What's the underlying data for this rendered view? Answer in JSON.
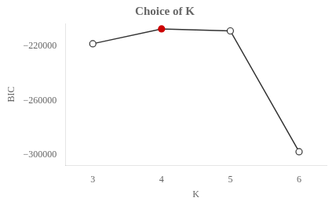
{
  "chart_data": {
    "type": "line",
    "title": "Choice of K",
    "xlabel": "K",
    "ylabel": "BIC",
    "x": [
      3,
      4,
      5,
      6
    ],
    "values": [
      -218000,
      -207000,
      -208500,
      -298000
    ],
    "color": "#333333",
    "colors": [
      "#333333",
      "#cc0000",
      "#333333",
      "#333333"
    ],
    "marker": "circle",
    "xlim": [
      2.6,
      6.4
    ],
    "ylim": [
      -308000,
      -203000
    ],
    "xticks": [
      3,
      4,
      5,
      6
    ],
    "yticks": [
      {
        "value": -300000,
        "label": "−300000"
      },
      {
        "value": -260000,
        "label": "−260000"
      },
      {
        "value": -220000,
        "label": "−220000"
      }
    ],
    "grid": false
  }
}
